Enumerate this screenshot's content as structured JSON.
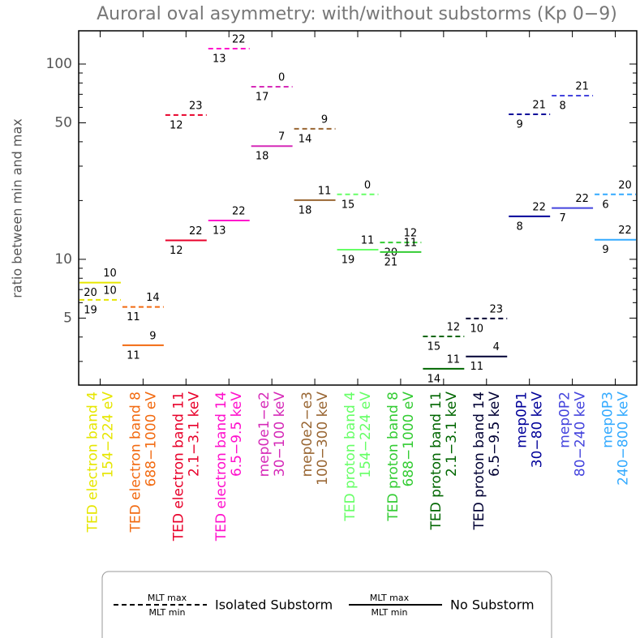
{
  "chart_data": {
    "type": "segment",
    "title": "Auroral oval asymmetry: with/without substorms (Kp 0−9)",
    "y_label": "ratio between min and max",
    "y_scale": "log",
    "ylim": [
      2.27,
      148
    ],
    "yticks": [
      5,
      10,
      50,
      100
    ],
    "yminorticks": [
      3,
      4,
      6,
      7,
      8,
      9,
      20,
      30,
      40,
      60,
      70,
      80,
      90
    ],
    "categories": [
      [
        "TED electron band 4",
        "154−224 eV"
      ],
      [
        "TED electron band 8",
        "688−1000 eV"
      ],
      [
        "TED electron band 11",
        "2.1−3.1 keV"
      ],
      [
        "TED electron band 14",
        "6.5−9.5 keV"
      ],
      [
        "mep0e1−e2",
        "30−100 keV"
      ],
      [
        "mep0e2−e3",
        "100−300 keV"
      ],
      [
        "TED proton band 4",
        "154−224 eV"
      ],
      [
        "TED proton band 8",
        "688−1000 eV"
      ],
      [
        "TED proton band 11",
        "2.1−3.1 keV"
      ],
      [
        "TED proton band 14",
        "6.5−9.5 keV"
      ],
      [
        "mep0P1",
        "30−80 keV"
      ],
      [
        "mep0P2",
        "80−240 keV"
      ],
      [
        "mep0P3",
        "240−800 keV"
      ]
    ],
    "category_colors": [
      "#e6e600",
      "#f26a10",
      "#e8002a",
      "#ff10cc",
      "#d62ab8",
      "#996633",
      "#66ff66",
      "#33cc33",
      "#006600",
      "#000033",
      "#000099",
      "#4444dd",
      "#33aaff"
    ],
    "series": [
      {
        "name": "Isolated Substorm",
        "line_style": "dashed",
        "values": [
          6.2,
          5.7,
          54.8,
          120,
          76.5,
          46.6,
          21.5,
          12.2,
          4.03,
          4.98,
          55.3,
          68.9,
          21.5
        ],
        "mlt_max": [
          10,
          14,
          23,
          22,
          0,
          9,
          0,
          12,
          12,
          23,
          21,
          21,
          20
        ],
        "mlt_min": [
          19,
          11,
          12,
          13,
          17,
          14,
          15,
          20,
          15,
          10,
          9,
          8,
          6
        ]
      },
      {
        "name": "No Substorm",
        "line_style": "solid",
        "values": [
          7.6,
          3.63,
          12.5,
          15.8,
          38,
          20.1,
          11.2,
          10.9,
          2.75,
          3.18,
          16.6,
          18.3,
          12.6
        ],
        "mlt_max": [
          10,
          9,
          22,
          22,
          7,
          11,
          11,
          11,
          11,
          4,
          22,
          22,
          22
        ],
        "mlt_min": [
          20,
          11,
          12,
          13,
          18,
          18,
          19,
          21,
          14,
          11,
          8,
          7,
          9
        ]
      }
    ],
    "legend_fraction": {
      "top": "MLT max",
      "bottom": "MLT min"
    }
  }
}
